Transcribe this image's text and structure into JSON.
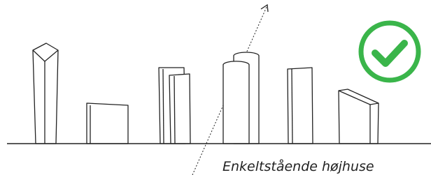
{
  "caption": "Enkeltstående højhuse"
}
